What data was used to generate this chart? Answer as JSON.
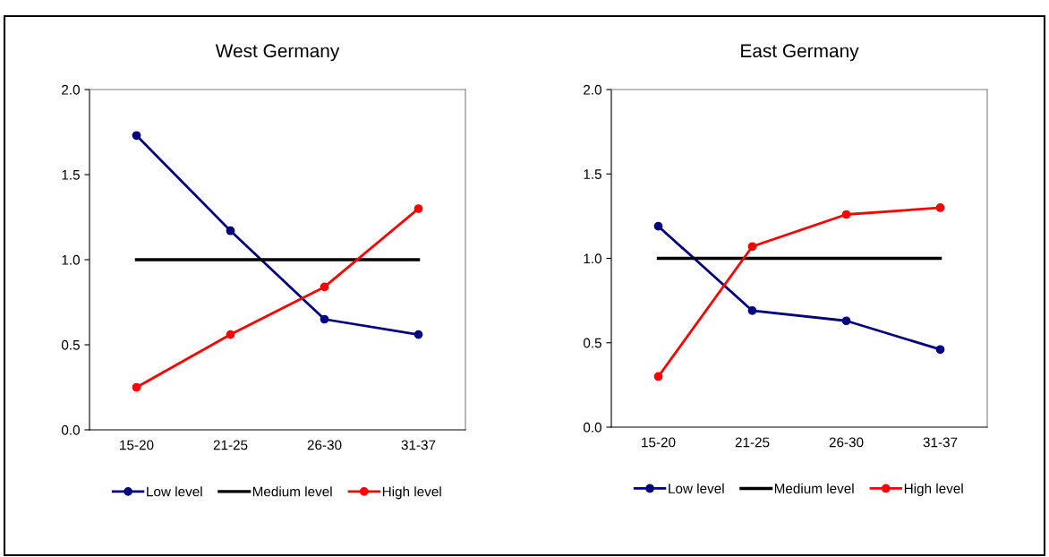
{
  "chart_data": [
    {
      "type": "line",
      "title": "West Germany",
      "categories": [
        "15-20",
        "21-25",
        "26-30",
        "31-37"
      ],
      "ylim": [
        0,
        2
      ],
      "yticks": [
        {
          "value": 0,
          "label": "0.0"
        },
        {
          "value": 0.5,
          "label": "0.5"
        },
        {
          "value": 1,
          "label": "1.0"
        },
        {
          "value": 1.5,
          "label": "1.5"
        },
        {
          "value": 2,
          "label": "2.0"
        }
      ],
      "grid": false,
      "legend": "bottom",
      "series": [
        {
          "name": "Low level",
          "color": "#000080",
          "marker": "circle",
          "values": [
            1.73,
            1.17,
            0.65,
            0.56
          ]
        },
        {
          "name": "Medium level",
          "color": "#000000",
          "marker": "none",
          "values": [
            1.0,
            1.0,
            1.0,
            1.0
          ]
        },
        {
          "name": "High level",
          "color": "#ff0000",
          "marker": "circle",
          "values": [
            0.25,
            0.56,
            0.84,
            1.3
          ]
        }
      ]
    },
    {
      "type": "line",
      "title": "East Germany",
      "categories": [
        "15-20",
        "21-25",
        "26-30",
        "31-37"
      ],
      "ylim": [
        0,
        2
      ],
      "yticks": [
        {
          "value": 0,
          "label": "0.0"
        },
        {
          "value": 0.5,
          "label": "0.5"
        },
        {
          "value": 1,
          "label": "1.0"
        },
        {
          "value": 1.5,
          "label": "1.5"
        },
        {
          "value": 2,
          "label": "2.0"
        }
      ],
      "grid": false,
      "legend": "bottom",
      "series": [
        {
          "name": "Low level",
          "color": "#000080",
          "marker": "circle",
          "values": [
            1.19,
            0.69,
            0.63,
            0.46
          ]
        },
        {
          "name": "Medium level",
          "color": "#000000",
          "marker": "none",
          "values": [
            1.0,
            1.0,
            1.0,
            1.0
          ]
        },
        {
          "name": "High level",
          "color": "#ff0000",
          "marker": "circle",
          "values": [
            0.3,
            1.07,
            1.26,
            1.3
          ]
        }
      ]
    }
  ]
}
